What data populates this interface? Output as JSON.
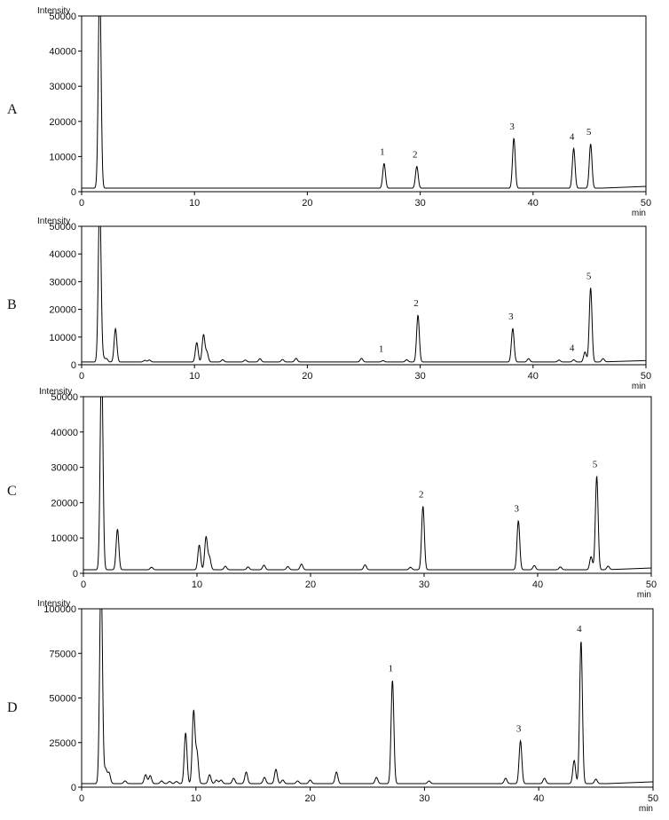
{
  "chart_data": [
    {
      "type": "line",
      "panel_label": "A",
      "ylabel": "Intensity",
      "xlabel": "min",
      "xlim": [
        0,
        50
      ],
      "ylim": [
        0,
        50000
      ],
      "x_ticks": [
        "0",
        "10",
        "20",
        "30",
        "40",
        "50"
      ],
      "y_ticks": [
        "0",
        "10000",
        "20000",
        "30000",
        "40000",
        "50000"
      ],
      "peaks": [
        {
          "x": 1.6,
          "y": 60000,
          "label": ""
        },
        {
          "x": 26.8,
          "y": 7000,
          "label": "1"
        },
        {
          "x": 29.7,
          "y": 6200,
          "label": "2"
        },
        {
          "x": 38.3,
          "y": 14200,
          "label": "3"
        },
        {
          "x": 43.6,
          "y": 11300,
          "label": "4"
        },
        {
          "x": 45.1,
          "y": 12600,
          "label": "5"
        }
      ]
    },
    {
      "type": "line",
      "panel_label": "B",
      "ylabel": "Intensity",
      "xlabel": "min",
      "xlim": [
        0,
        50
      ],
      "ylim": [
        0,
        50000
      ],
      "x_ticks": [
        "0",
        "10",
        "20",
        "30",
        "40",
        "50"
      ],
      "y_ticks": [
        "0",
        "10000",
        "20000",
        "30000",
        "40000",
        "50000"
      ],
      "peaks": [
        {
          "x": 1.6,
          "y": 60000,
          "label": ""
        },
        {
          "x": 1.9,
          "y": 1500,
          "label": ""
        },
        {
          "x": 2.2,
          "y": 1200,
          "label": ""
        },
        {
          "x": 3.0,
          "y": 12000,
          "label": ""
        },
        {
          "x": 5.6,
          "y": 600,
          "label": ""
        },
        {
          "x": 6.0,
          "y": 700,
          "label": ""
        },
        {
          "x": 10.2,
          "y": 7000,
          "label": ""
        },
        {
          "x": 10.8,
          "y": 9800,
          "label": ""
        },
        {
          "x": 11.1,
          "y": 3500,
          "label": ""
        },
        {
          "x": 12.5,
          "y": 800,
          "label": ""
        },
        {
          "x": 14.5,
          "y": 700,
          "label": ""
        },
        {
          "x": 15.8,
          "y": 1200,
          "label": ""
        },
        {
          "x": 17.8,
          "y": 900,
          "label": ""
        },
        {
          "x": 19.0,
          "y": 1300,
          "label": ""
        },
        {
          "x": 24.8,
          "y": 1300,
          "label": ""
        },
        {
          "x": 26.7,
          "y": 500,
          "label": "1"
        },
        {
          "x": 28.8,
          "y": 800,
          "label": ""
        },
        {
          "x": 29.8,
          "y": 16900,
          "label": "2"
        },
        {
          "x": 38.2,
          "y": 12100,
          "label": "3"
        },
        {
          "x": 39.6,
          "y": 1200,
          "label": ""
        },
        {
          "x": 42.3,
          "y": 700,
          "label": ""
        },
        {
          "x": 43.6,
          "y": 800,
          "label": "4"
        },
        {
          "x": 44.6,
          "y": 3600,
          "label": ""
        },
        {
          "x": 45.1,
          "y": 26800,
          "label": "5"
        },
        {
          "x": 46.2,
          "y": 1200,
          "label": ""
        }
      ]
    },
    {
      "type": "line",
      "panel_label": "C",
      "ylabel": "Intensity",
      "xlabel": "min",
      "xlim": [
        0,
        50
      ],
      "ylim": [
        0,
        50000
      ],
      "x_ticks": [
        "0",
        "10",
        "20",
        "30",
        "40",
        "50"
      ],
      "y_ticks": [
        "0",
        "10000",
        "20000",
        "30000",
        "40000",
        "50000"
      ],
      "peaks": [
        {
          "x": 1.6,
          "y": 60000,
          "label": ""
        },
        {
          "x": 3.0,
          "y": 11500,
          "label": ""
        },
        {
          "x": 6.0,
          "y": 700,
          "label": ""
        },
        {
          "x": 10.2,
          "y": 7000,
          "label": ""
        },
        {
          "x": 10.8,
          "y": 9300,
          "label": ""
        },
        {
          "x": 11.1,
          "y": 3500,
          "label": ""
        },
        {
          "x": 12.5,
          "y": 1000,
          "label": ""
        },
        {
          "x": 14.5,
          "y": 800,
          "label": ""
        },
        {
          "x": 15.9,
          "y": 1300,
          "label": ""
        },
        {
          "x": 18.0,
          "y": 900,
          "label": ""
        },
        {
          "x": 19.2,
          "y": 1600,
          "label": ""
        },
        {
          "x": 24.8,
          "y": 1400,
          "label": ""
        },
        {
          "x": 28.8,
          "y": 700,
          "label": ""
        },
        {
          "x": 29.9,
          "y": 18000,
          "label": "2"
        },
        {
          "x": 38.3,
          "y": 13900,
          "label": "3"
        },
        {
          "x": 39.7,
          "y": 1200,
          "label": ""
        },
        {
          "x": 42.0,
          "y": 800,
          "label": ""
        },
        {
          "x": 44.7,
          "y": 3700,
          "label": ""
        },
        {
          "x": 45.2,
          "y": 26500,
          "label": "5"
        },
        {
          "x": 46.2,
          "y": 1000,
          "label": ""
        }
      ]
    },
    {
      "type": "line",
      "panel_label": "D",
      "ylabel": "Intensity",
      "xlabel": "min",
      "xlim": [
        0,
        50
      ],
      "ylim": [
        0,
        100000
      ],
      "x_ticks": [
        "0",
        "10",
        "20",
        "30",
        "40",
        "50"
      ],
      "y_ticks": [
        "0",
        "25000",
        "50000",
        "75000",
        "100000"
      ],
      "peaks": [
        {
          "x": 1.7,
          "y": 120000,
          "label": ""
        },
        {
          "x": 2.1,
          "y": 8000,
          "label": ""
        },
        {
          "x": 2.4,
          "y": 6000,
          "label": ""
        },
        {
          "x": 3.8,
          "y": 1500,
          "label": ""
        },
        {
          "x": 5.6,
          "y": 5000,
          "label": ""
        },
        {
          "x": 6.0,
          "y": 4500,
          "label": ""
        },
        {
          "x": 7.0,
          "y": 1500,
          "label": ""
        },
        {
          "x": 7.7,
          "y": 1200,
          "label": ""
        },
        {
          "x": 8.3,
          "y": 1200,
          "label": ""
        },
        {
          "x": 9.1,
          "y": 28500,
          "label": ""
        },
        {
          "x": 9.8,
          "y": 40500,
          "label": ""
        },
        {
          "x": 10.1,
          "y": 17000,
          "label": ""
        },
        {
          "x": 11.2,
          "y": 5000,
          "label": ""
        },
        {
          "x": 11.8,
          "y": 2000,
          "label": ""
        },
        {
          "x": 12.2,
          "y": 2000,
          "label": ""
        },
        {
          "x": 13.3,
          "y": 3000,
          "label": ""
        },
        {
          "x": 14.4,
          "y": 6500,
          "label": ""
        },
        {
          "x": 16.0,
          "y": 3500,
          "label": ""
        },
        {
          "x": 17.0,
          "y": 8000,
          "label": ""
        },
        {
          "x": 17.6,
          "y": 2000,
          "label": ""
        },
        {
          "x": 18.9,
          "y": 1500,
          "label": ""
        },
        {
          "x": 20.0,
          "y": 2000,
          "label": ""
        },
        {
          "x": 22.3,
          "y": 6500,
          "label": ""
        },
        {
          "x": 25.8,
          "y": 3500,
          "label": ""
        },
        {
          "x": 27.2,
          "y": 58000,
          "label": "1"
        },
        {
          "x": 30.4,
          "y": 1500,
          "label": ""
        },
        {
          "x": 37.1,
          "y": 3000,
          "label": ""
        },
        {
          "x": 38.4,
          "y": 24000,
          "label": "3"
        },
        {
          "x": 40.5,
          "y": 3000,
          "label": ""
        },
        {
          "x": 43.1,
          "y": 13000,
          "label": ""
        },
        {
          "x": 43.7,
          "y": 80000,
          "label": "4"
        },
        {
          "x": 45.0,
          "y": 2500,
          "label": ""
        }
      ]
    }
  ]
}
